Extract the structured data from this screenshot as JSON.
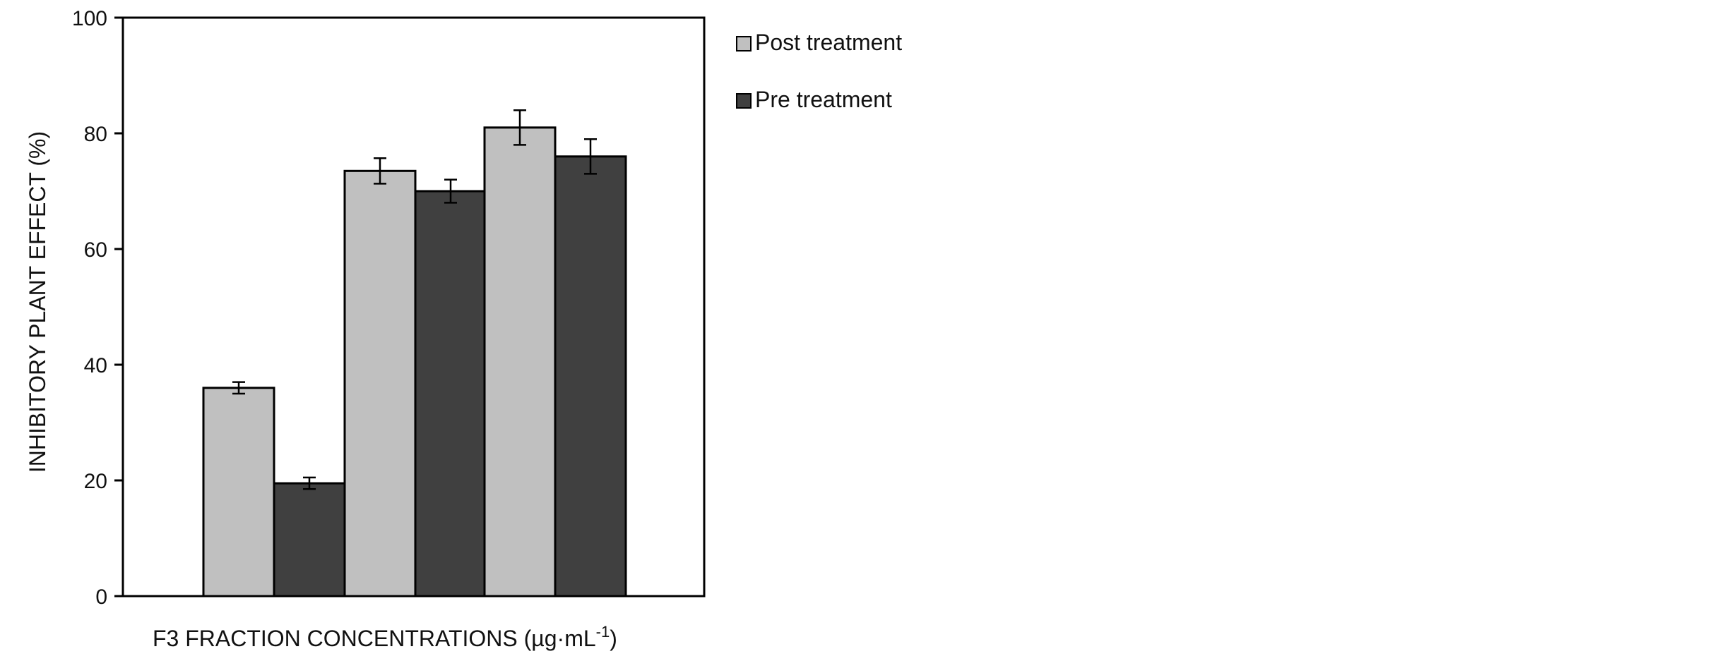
{
  "chart_data": {
    "type": "bar",
    "title": "",
    "categories": [
      "",
      "",
      ""
    ],
    "series": [
      {
        "name": "Post treatment",
        "values": [
          36,
          73.5,
          81
        ],
        "errors": [
          1,
          2.2,
          3
        ],
        "color": "#c0c0c0"
      },
      {
        "name": "Pre treatment",
        "values": [
          19.5,
          70,
          76
        ],
        "errors": [
          1,
          2,
          3
        ],
        "color": "#404040"
      }
    ],
    "ylabel": "INHIBITORY PLANT EFFECT (%)",
    "xlabel": {
      "main": "F3 FRACTION  CONCENTRATIONS  (µg·mL",
      "superscript": "-1",
      "close": ")"
    },
    "ylim": [
      0,
      100
    ],
    "yticks": [
      "0",
      "20",
      "40",
      "60",
      "80",
      "100"
    ],
    "legend_position": "right",
    "grid": false
  }
}
